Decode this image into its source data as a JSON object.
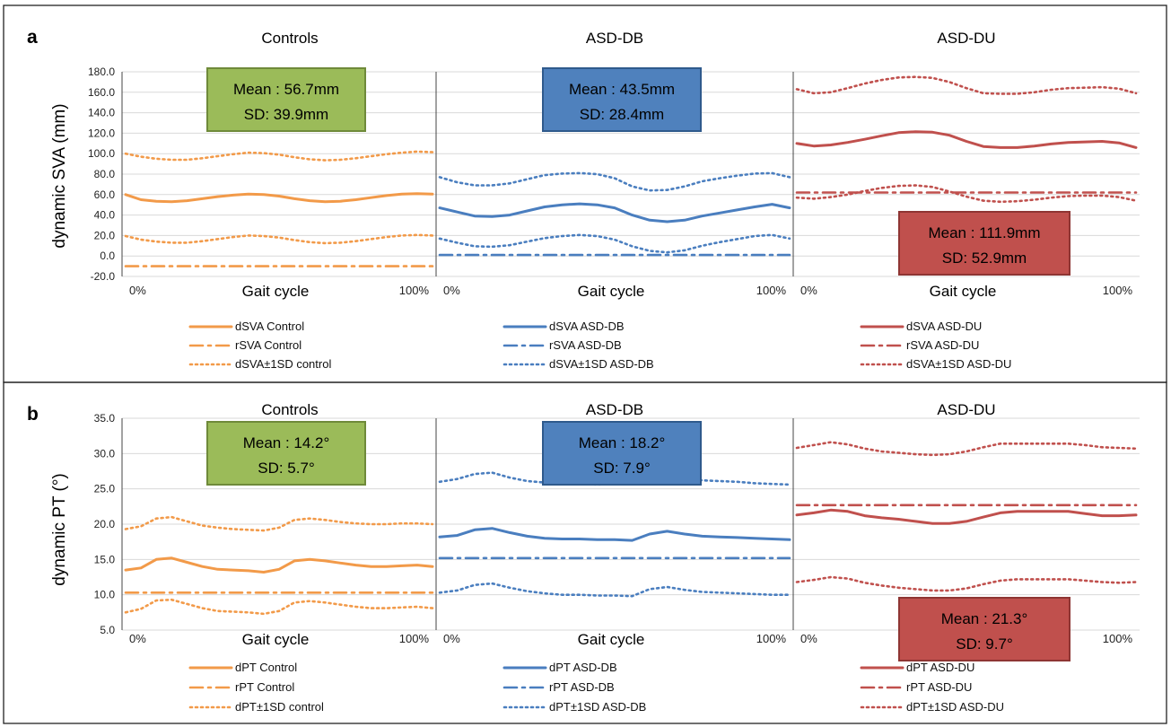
{
  "chart_data": [
    {
      "panel": "a",
      "type": "line",
      "ylabel": "dynamic SVA (mm)",
      "ylim": [
        -20,
        180
      ],
      "yticks": [
        "-20.0",
        "0.0",
        "20.0",
        "40.0",
        "60.0",
        "80.0",
        "100.0",
        "120.0",
        "140.0",
        "160.0",
        "180.0"
      ],
      "grid": true,
      "subplots": [
        {
          "title": "Controls",
          "xlabel": "Gait cycle",
          "x_start_label": "0%",
          "x_end_label": "100%",
          "color": "#f29a49",
          "stats": {
            "mean": "Mean : 56.7mm",
            "sd": "SD: 39.9mm",
            "box_fill": "#9bbb59",
            "box_stroke": "#6f8a3a",
            "box_pos": "top"
          },
          "x": [
            0,
            5,
            10,
            15,
            20,
            25,
            30,
            35,
            40,
            45,
            50,
            55,
            60,
            65,
            70,
            75,
            80,
            85,
            90,
            95,
            100
          ],
          "series": [
            {
              "name": "dSVA Control",
              "style": "solid",
              "values": [
                60,
                55,
                53.5,
                53,
                54,
                56,
                58,
                59.5,
                60.5,
                60,
                58.5,
                56,
                54,
                53,
                53.5,
                55,
                57,
                59,
                60.5,
                61,
                60.5
              ]
            },
            {
              "name": "rSVA Control",
              "style": "dashdot",
              "values": [
                -10,
                -10,
                -10,
                -10,
                -10,
                -10,
                -10,
                -10,
                -10,
                -10,
                -10,
                -10,
                -10,
                -10,
                -10,
                -10,
                -10,
                -10,
                -10,
                -10,
                -10
              ]
            },
            {
              "name": "dSVA±1SD control",
              "style": "dotted",
              "values": [
                100,
                97,
                95,
                94,
                94,
                95.5,
                97.5,
                99.5,
                101,
                100.5,
                99,
                96.5,
                94.5,
                93.5,
                94,
                95.5,
                97.5,
                99.5,
                101,
                102,
                101.5
              ]
            },
            {
              "style": "dotted",
              "values": [
                19.5,
                16,
                14,
                13,
                13,
                14.5,
                16.5,
                18.5,
                20,
                19.5,
                18,
                15.5,
                13.5,
                12.5,
                13,
                14.5,
                16.5,
                18.5,
                20,
                20.5,
                20
              ]
            }
          ]
        },
        {
          "title": "ASD-DB",
          "xlabel": "Gait cycle",
          "x_start_label": "0%",
          "x_end_label": "100%",
          "color": "#4a7ebf",
          "stats": {
            "mean": "Mean : 43.5mm",
            "sd": "SD: 28.4mm",
            "box_fill": "#4f81bd",
            "box_stroke": "#2f5a8c",
            "box_pos": "top"
          },
          "x": [
            0,
            5,
            10,
            15,
            20,
            25,
            30,
            35,
            40,
            45,
            50,
            55,
            60,
            65,
            70,
            75,
            80,
            85,
            90,
            95,
            100
          ],
          "series": [
            {
              "name": "dSVA ASD-DB",
              "style": "solid",
              "values": [
                47,
                43,
                39,
                38.5,
                40,
                44,
                48,
                50,
                51,
                50,
                47,
                40,
                35,
                33.5,
                35,
                39,
                42,
                45,
                48,
                50.5,
                47
              ]
            },
            {
              "name": "rSVA ASD-DB",
              "style": "dashdot",
              "values": [
                1,
                1,
                1,
                1,
                1,
                1,
                1,
                1,
                1,
                1,
                1,
                1,
                1,
                1,
                1,
                1,
                1,
                1,
                1,
                1,
                1
              ]
            },
            {
              "name": "dSVA±1SD ASD-DB",
              "style": "dotted",
              "values": [
                77,
                72,
                69,
                69,
                71,
                75,
                79,
                80.5,
                81,
                80,
                76,
                68,
                64,
                64.5,
                68,
                73,
                76,
                78.5,
                80.5,
                81,
                77
              ]
            },
            {
              "style": "dotted",
              "values": [
                17,
                13,
                9.5,
                9,
                10.5,
                14,
                17.5,
                19.5,
                20.5,
                19.5,
                16,
                9.5,
                5,
                3.5,
                5.5,
                10,
                13.5,
                16.5,
                19.5,
                20.5,
                17
              ]
            }
          ]
        },
        {
          "title": "ASD-DU",
          "xlabel": "Gait cycle",
          "x_start_label": "0%",
          "x_end_label": "100%",
          "color": "#c0504d",
          "stats": {
            "mean": "Mean : 111.9mm",
            "sd": "SD: 52.9mm",
            "box_fill": "#c0504d",
            "box_stroke": "#8e3533",
            "box_pos": "bottom"
          },
          "x": [
            0,
            5,
            10,
            15,
            20,
            25,
            30,
            35,
            40,
            45,
            50,
            55,
            60,
            65,
            70,
            75,
            80,
            85,
            90,
            95,
            100
          ],
          "series": [
            {
              "name": "dSVA ASD-DU",
              "style": "solid",
              "values": [
                110,
                107.5,
                108.5,
                111,
                114,
                117.5,
                120.5,
                121.5,
                121,
                118,
                112,
                107,
                106,
                106,
                107.5,
                109.5,
                111,
                111.5,
                112,
                110.5,
                106
              ]
            },
            {
              "name": "rSVA ASD-DU",
              "style": "dashdot",
              "values": [
                62,
                62,
                62,
                62,
                62,
                62,
                62,
                62,
                62,
                62,
                62,
                62,
                62,
                62,
                62,
                62,
                62,
                62,
                62,
                62,
                62
              ]
            },
            {
              "name": "dSVA±1SD ASD-DU",
              "style": "dotted",
              "values": [
                163,
                159,
                160,
                164,
                168.5,
                172,
                174.5,
                175,
                174,
                170,
                164,
                159,
                158.5,
                158.5,
                160,
                162.5,
                164,
                164.5,
                165,
                163.5,
                159
              ]
            },
            {
              "style": "dotted",
              "values": [
                57,
                56,
                57.5,
                60,
                63.5,
                66.5,
                68.5,
                69,
                67.5,
                63,
                58,
                54,
                53,
                53.5,
                55,
                57,
                58.5,
                59,
                59,
                57.5,
                54
              ]
            }
          ]
        }
      ]
    },
    {
      "panel": "b",
      "type": "line",
      "ylabel": "dynamic PT (°)",
      "ylim": [
        5,
        35
      ],
      "yticks": [
        "5.0",
        "10.0",
        "15.0",
        "20.0",
        "25.0",
        "30.0",
        "35.0"
      ],
      "grid": true,
      "subplots": [
        {
          "title": "Controls",
          "xlabel": "Gait cycle",
          "x_start_label": "0%",
          "x_end_label": "100%",
          "color": "#f29a49",
          "stats": {
            "mean": "Mean : 14.2°",
            "sd": "SD: 5.7°",
            "box_fill": "#9bbb59",
            "box_stroke": "#6f8a3a",
            "box_pos": "top"
          },
          "x": [
            0,
            5,
            10,
            15,
            20,
            25,
            30,
            35,
            40,
            45,
            50,
            55,
            60,
            65,
            70,
            75,
            80,
            85,
            90,
            95,
            100
          ],
          "series": [
            {
              "name": "dPT Control",
              "style": "solid",
              "values": [
                13.5,
                13.8,
                15,
                15.2,
                14.6,
                14,
                13.6,
                13.5,
                13.4,
                13.2,
                13.6,
                14.8,
                15,
                14.8,
                14.5,
                14.2,
                14,
                14,
                14.1,
                14.2,
                14
              ]
            },
            {
              "name": "rPT Control",
              "style": "dashdot",
              "values": [
                10.3,
                10.3,
                10.3,
                10.3,
                10.3,
                10.3,
                10.3,
                10.3,
                10.3,
                10.3,
                10.3,
                10.3,
                10.3,
                10.3,
                10.3,
                10.3,
                10.3,
                10.3,
                10.3,
                10.3,
                10.3
              ]
            },
            {
              "name": "dPT±1SD control",
              "style": "dotted",
              "values": [
                19.3,
                19.7,
                20.8,
                21,
                20.4,
                19.8,
                19.5,
                19.3,
                19.2,
                19.1,
                19.5,
                20.6,
                20.8,
                20.6,
                20.3,
                20.1,
                20,
                20,
                20.1,
                20.1,
                20
              ]
            },
            {
              "style": "dotted",
              "values": [
                7.5,
                8,
                9.2,
                9.3,
                8.7,
                8.1,
                7.7,
                7.6,
                7.5,
                7.3,
                7.7,
                8.9,
                9.1,
                8.9,
                8.6,
                8.3,
                8.1,
                8.1,
                8.2,
                8.3,
                8.1
              ]
            }
          ]
        },
        {
          "title": "ASD-DB",
          "xlabel": "Gait cycle",
          "x_start_label": "0%",
          "x_end_label": "100%",
          "color": "#4a7ebf",
          "stats": {
            "mean": "Mean : 18.2°",
            "sd": "SD: 7.9°",
            "box_fill": "#4f81bd",
            "box_stroke": "#2f5a8c",
            "box_pos": "top"
          },
          "x": [
            0,
            5,
            10,
            15,
            20,
            25,
            30,
            35,
            40,
            45,
            50,
            55,
            60,
            65,
            70,
            75,
            80,
            85,
            90,
            95,
            100
          ],
          "series": [
            {
              "name": "dPT ASD-DB",
              "style": "solid",
              "values": [
                18.2,
                18.4,
                19.2,
                19.4,
                18.8,
                18.3,
                18,
                17.9,
                17.9,
                17.8,
                17.8,
                17.7,
                18.6,
                19,
                18.6,
                18.3,
                18.2,
                18.1,
                18,
                17.9,
                17.8
              ]
            },
            {
              "name": "rPT ASD-DB",
              "style": "dashdot",
              "values": [
                15.2,
                15.2,
                15.2,
                15.2,
                15.2,
                15.2,
                15.2,
                15.2,
                15.2,
                15.2,
                15.2,
                15.2,
                15.2,
                15.2,
                15.2,
                15.2,
                15.2,
                15.2,
                15.2,
                15.2,
                15.2
              ]
            },
            {
              "name": "dPT±1SD ASD-DB",
              "style": "dotted",
              "values": [
                26,
                26.4,
                27.1,
                27.3,
                26.6,
                26.1,
                25.9,
                25.7,
                25.7,
                25.6,
                25.7,
                25.7,
                26.6,
                26.9,
                26.5,
                26.2,
                26.1,
                26,
                25.8,
                25.7,
                25.6
              ]
            },
            {
              "style": "dotted",
              "values": [
                10.3,
                10.6,
                11.4,
                11.6,
                11,
                10.5,
                10.2,
                10,
                10,
                9.9,
                9.9,
                9.8,
                10.8,
                11.1,
                10.7,
                10.4,
                10.3,
                10.2,
                10.1,
                10,
                10
              ]
            }
          ]
        },
        {
          "title": "ASD-DU",
          "xlabel": "Gait cycle",
          "x_start_label": "0%",
          "x_end_label": "100%",
          "color": "#c0504d",
          "stats": {
            "mean": "Mean : 21.3°",
            "sd": "SD: 9.7°",
            "box_fill": "#c0504d",
            "box_stroke": "#8e3533",
            "box_pos": "bottom"
          },
          "x": [
            0,
            5,
            10,
            15,
            20,
            25,
            30,
            35,
            40,
            45,
            50,
            55,
            60,
            65,
            70,
            75,
            80,
            85,
            90,
            95,
            100
          ],
          "series": [
            {
              "name": "dPT ASD-DU",
              "style": "solid",
              "values": [
                21.3,
                21.6,
                22,
                21.8,
                21.2,
                20.9,
                20.7,
                20.4,
                20.1,
                20.1,
                20.4,
                21,
                21.6,
                21.8,
                21.8,
                21.8,
                21.8,
                21.5,
                21.2,
                21.2,
                21.3
              ]
            },
            {
              "name": "rPT ASD-DU",
              "style": "dashdot",
              "values": [
                22.7,
                22.7,
                22.7,
                22.7,
                22.7,
                22.7,
                22.7,
                22.7,
                22.7,
                22.7,
                22.7,
                22.7,
                22.7,
                22.7,
                22.7,
                22.7,
                22.7,
                22.7,
                22.7,
                22.7,
                22.7
              ]
            },
            {
              "name": "dPT±1SD ASD-DU",
              "style": "dotted",
              "values": [
                30.8,
                31.2,
                31.6,
                31.3,
                30.7,
                30.3,
                30.1,
                29.9,
                29.8,
                29.9,
                30.3,
                30.9,
                31.4,
                31.4,
                31.4,
                31.4,
                31.4,
                31.2,
                30.9,
                30.8,
                30.7
              ]
            },
            {
              "style": "dotted",
              "values": [
                11.8,
                12.1,
                12.5,
                12.3,
                11.7,
                11.3,
                11,
                10.8,
                10.6,
                10.6,
                10.9,
                11.5,
                12,
                12.2,
                12.2,
                12.2,
                12.2,
                12,
                11.8,
                11.7,
                11.8
              ]
            }
          ]
        }
      ]
    }
  ]
}
